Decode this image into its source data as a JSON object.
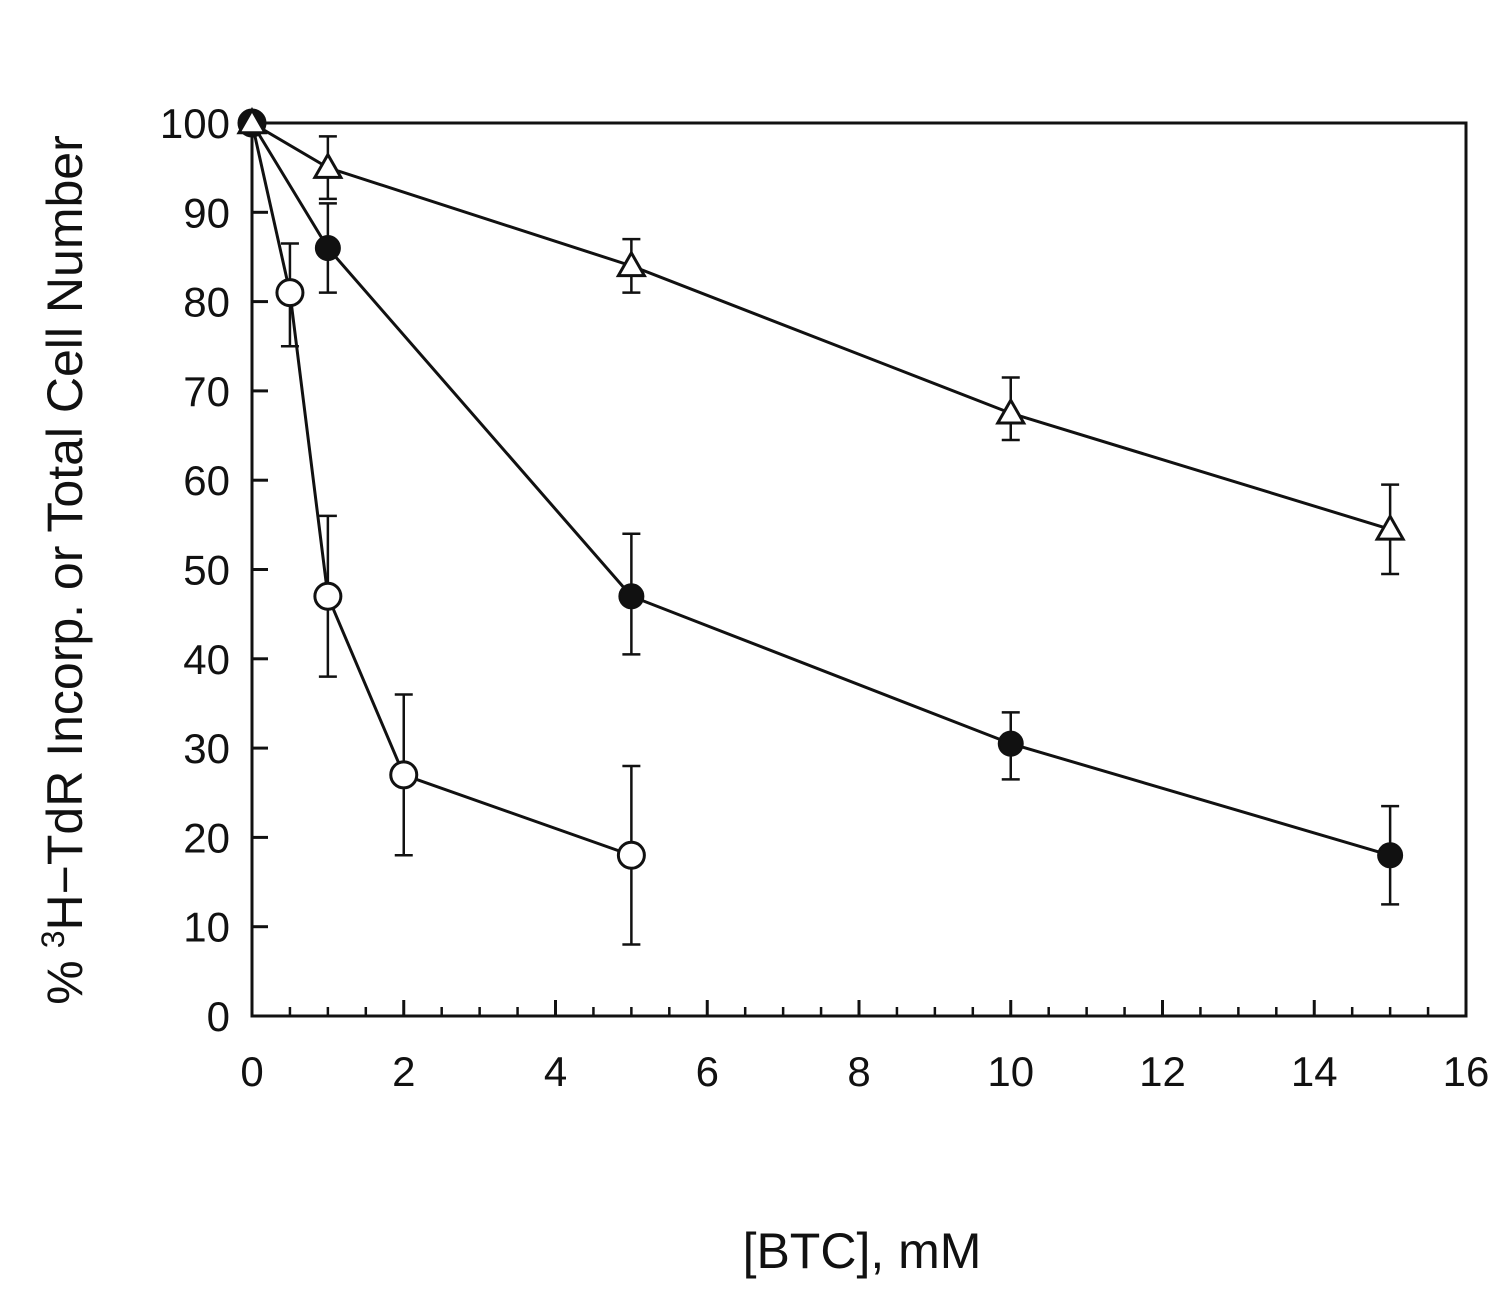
{
  "chart_data": {
    "type": "line",
    "xlabel": "[BTC],  mM",
    "ylabel_superscript": "3",
    "ylabel_prefix": "%",
    "ylabel_main": "H−TdR Incorp. or Total Cell Number",
    "xlim": [
      0,
      16
    ],
    "ylim": [
      0,
      100
    ],
    "xticks": [
      0,
      2,
      4,
      6,
      8,
      10,
      12,
      14,
      16
    ],
    "yticks": [
      0,
      10,
      20,
      30,
      40,
      50,
      60,
      70,
      80,
      90,
      100
    ],
    "x_minor_step": 0.5,
    "grid": false,
    "series": [
      {
        "marker": "open-circle",
        "points": [
          {
            "x": 0,
            "y": 100,
            "err_up": 0,
            "err_down": 0
          },
          {
            "x": 0.5,
            "y": 81,
            "err_up": 5.5,
            "err_down": 6
          },
          {
            "x": 1,
            "y": 47,
            "err_up": 9,
            "err_down": 9
          },
          {
            "x": 2,
            "y": 27,
            "err_up": 9,
            "err_down": 9
          },
          {
            "x": 5,
            "y": 18,
            "err_up": 10,
            "err_down": 10
          }
        ]
      },
      {
        "marker": "filled-circle",
        "points": [
          {
            "x": 0,
            "y": 100,
            "err_up": 0,
            "err_down": 0
          },
          {
            "x": 1,
            "y": 86,
            "err_up": 5,
            "err_down": 5
          },
          {
            "x": 5,
            "y": 47,
            "err_up": 7,
            "err_down": 6.5
          },
          {
            "x": 10,
            "y": 30.5,
            "err_up": 3.5,
            "err_down": 4
          },
          {
            "x": 15,
            "y": 18,
            "err_up": 5.5,
            "err_down": 5.5
          }
        ]
      },
      {
        "marker": "open-triangle",
        "points": [
          {
            "x": 0,
            "y": 100,
            "err_up": 0,
            "err_down": 0
          },
          {
            "x": 1,
            "y": 95,
            "err_up": 3.5,
            "err_down": 3.5
          },
          {
            "x": 5,
            "y": 84,
            "err_up": 3,
            "err_down": 3
          },
          {
            "x": 10,
            "y": 67.5,
            "err_up": 4,
            "err_down": 3
          },
          {
            "x": 15,
            "y": 54.5,
            "err_up": 5,
            "err_down": 5
          }
        ]
      }
    ]
  }
}
